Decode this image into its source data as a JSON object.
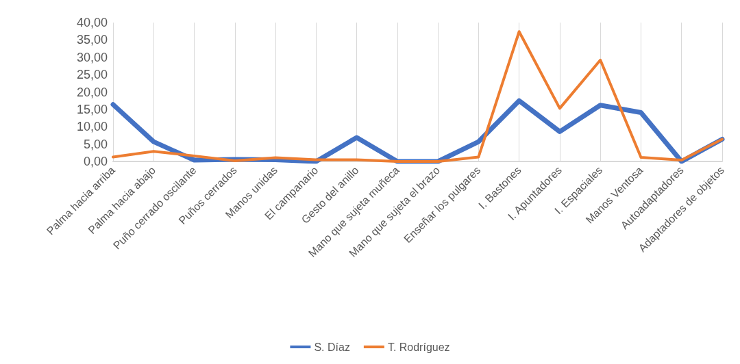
{
  "chart_data": {
    "type": "line",
    "categories": [
      "Palma hacia arriba",
      "Palma hacia abajo",
      "Puño cerrado oscilante",
      "Puños cerrados",
      "Manos unidas",
      "El campanario",
      "Gesto del anillo",
      "Mano que sujeta muñeca",
      "Mano que sujeta el brazo",
      "Enseñar los pulgares",
      "I. Bastones",
      "I. Apuntadores",
      "I. Espaciales",
      "Manos Ventosa",
      "Autoadaptadores",
      "Adaptadores de objetos"
    ],
    "series": [
      {
        "name": "S. Díaz",
        "color": "#4472c4",
        "values": [
          16.4,
          5.7,
          0.4,
          0.6,
          0.5,
          0,
          6.9,
          0,
          0,
          5.7,
          17.5,
          8.6,
          16.2,
          14.1,
          0,
          6.4
        ]
      },
      {
        "name": "T. Rodríguez",
        "color": "#ed7d31",
        "values": [
          1.3,
          2.9,
          1.6,
          0.2,
          1.1,
          0.5,
          0.5,
          0,
          0,
          1.3,
          37.4,
          15.3,
          29.2,
          1.2,
          0.4,
          6.4
        ]
      }
    ],
    "ylim": [
      0,
      40
    ],
    "yticks": [
      {
        "value": 0,
        "label": "0,00"
      },
      {
        "value": 5,
        "label": "5,00"
      },
      {
        "value": 10,
        "label": "10,00"
      },
      {
        "value": 15,
        "label": "15,00"
      },
      {
        "value": 20,
        "label": "20,00"
      },
      {
        "value": 25,
        "label": "25,00"
      },
      {
        "value": 30,
        "label": "30,00"
      },
      {
        "value": 35,
        "label": "35,00"
      },
      {
        "value": 40,
        "label": "40,00"
      }
    ],
    "grid": "x",
    "legend": "bottom",
    "marker": "none",
    "line_style": "solid"
  }
}
